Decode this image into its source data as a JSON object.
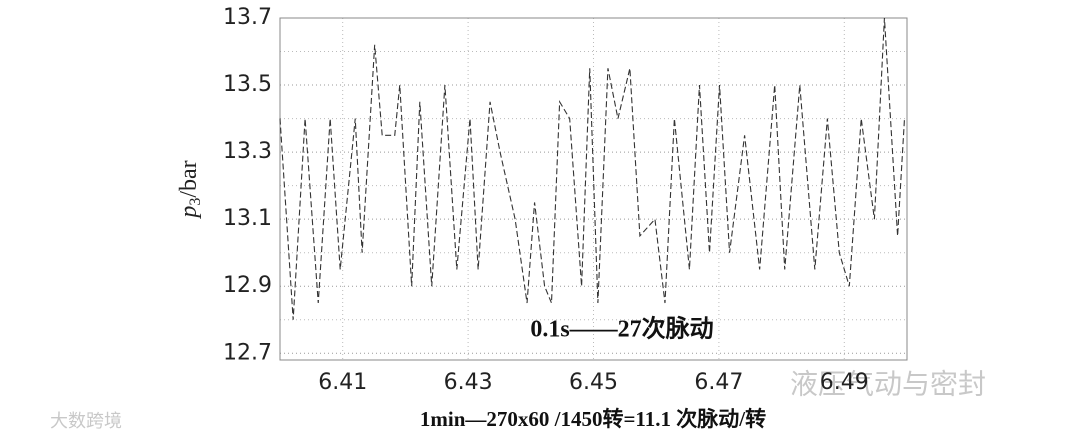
{
  "chart_data": {
    "type": "line",
    "ylabel": {
      "symbol": "p",
      "subscript": "3",
      "unit": "/bar"
    },
    "xlabel": "1min—270x60  /1450转=11.1 次脉动/转",
    "annotation": "0.1s——27次脉动",
    "watermarks": [
      "液压气动与密封",
      "大数跨境"
    ],
    "xlim": [
      6.4,
      6.5
    ],
    "xticks": [
      6.41,
      6.43,
      6.45,
      6.47,
      6.49
    ],
    "ylim": [
      12.68,
      13.7
    ],
    "yticks": [
      12.7,
      12.9,
      13.1,
      13.3,
      13.5,
      13.7
    ],
    "yminor_ticks": [
      12.8,
      13.0,
      13.2,
      13.4,
      13.6
    ],
    "grid": true,
    "x": [
      6.4,
      6.4021,
      6.404,
      6.4061,
      6.408,
      6.4096,
      6.412,
      6.4131,
      6.4151,
      6.4163,
      6.4183,
      6.4191,
      6.421,
      6.4223,
      6.4242,
      6.4263,
      6.4282,
      6.4303,
      6.4316,
      6.4335,
      6.4351,
      6.4375,
      6.4394,
      6.4406,
      6.4422,
      6.4433,
      6.4446,
      6.4462,
      6.4481,
      6.4494,
      6.4507,
      6.4523,
      6.4539,
      6.4558,
      6.4574,
      6.4598,
      6.4614,
      6.4629,
      6.4653,
      6.4669,
      6.4685,
      6.4701,
      6.4717,
      6.4741,
      6.4765,
      6.4789,
      6.4805,
      6.4829,
      6.4853,
      6.4873,
      6.4892,
      6.4908,
      6.4927,
      6.4948,
      6.4964,
      6.4985,
      6.4996
    ],
    "series": [
      {
        "color": "#333333",
        "values": [
          13.4,
          12.8,
          13.4,
          12.85,
          13.4,
          12.95,
          13.4,
          13.0,
          13.62,
          13.35,
          13.35,
          13.5,
          12.9,
          13.45,
          12.9,
          13.5,
          12.95,
          13.4,
          12.95,
          13.45,
          13.3,
          13.1,
          12.85,
          13.15,
          12.9,
          12.85,
          13.45,
          13.4,
          12.9,
          13.55,
          12.85,
          13.55,
          13.4,
          13.55,
          13.05,
          13.1,
          12.85,
          13.4,
          12.95,
          13.5,
          13.0,
          13.5,
          13.0,
          13.35,
          12.95,
          13.5,
          12.95,
          13.5,
          12.95,
          13.4,
          13.0,
          12.9,
          13.4,
          13.1,
          13.7,
          13.05,
          13.4
        ]
      }
    ]
  }
}
